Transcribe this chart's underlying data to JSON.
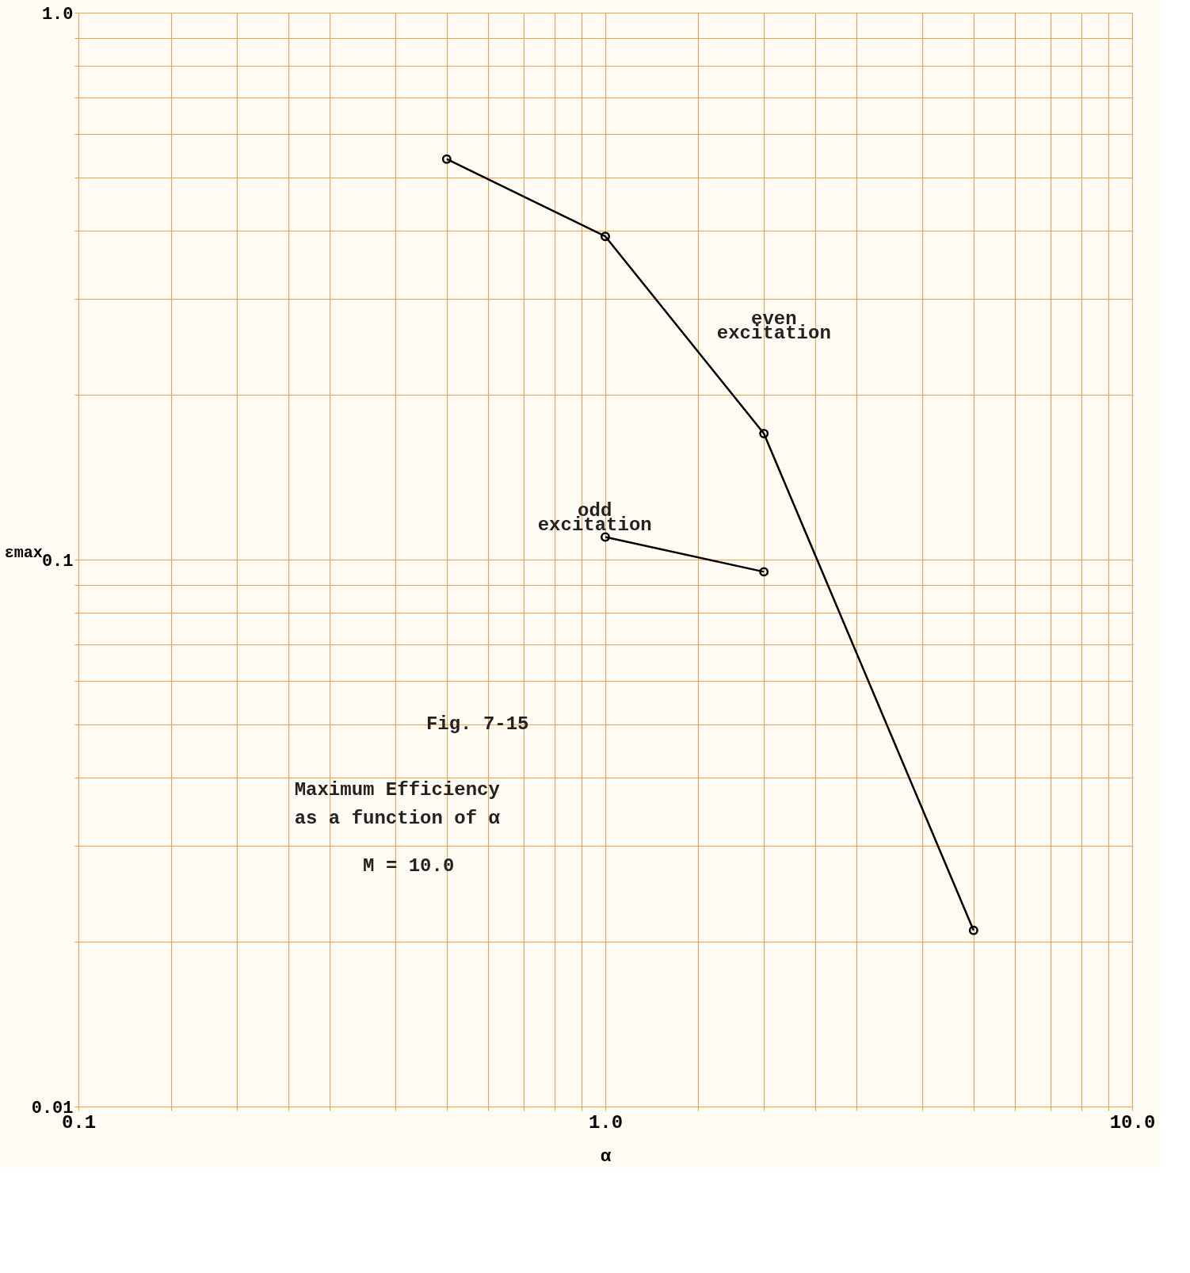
{
  "chart_data": {
    "type": "line",
    "xlabel": "α",
    "ylabel": "εmax",
    "log": "xy",
    "grid": true,
    "legend": false,
    "marker": "circle",
    "line_style": "solid",
    "xlim": [
      0.1,
      10
    ],
    "ylim": [
      0.01,
      1.0
    ],
    "xticks": [
      {
        "value": 0.1,
        "label": "0.1"
      },
      {
        "value": 0.15,
        "label": null
      },
      {
        "value": 0.2,
        "label": null
      },
      {
        "value": 0.25,
        "label": null
      },
      {
        "value": 0.3,
        "label": null
      },
      {
        "value": 0.4,
        "label": null
      },
      {
        "value": 0.5,
        "label": null
      },
      {
        "value": 0.6,
        "label": null
      },
      {
        "value": 0.7,
        "label": null
      },
      {
        "value": 0.8,
        "label": null
      },
      {
        "value": 0.9,
        "label": null
      },
      {
        "value": 1,
        "label": "1.0"
      },
      {
        "value": 1.5,
        "label": null
      },
      {
        "value": 2,
        "label": null
      },
      {
        "value": 2.5,
        "label": null
      },
      {
        "value": 3,
        "label": null
      },
      {
        "value": 4,
        "label": null
      },
      {
        "value": 5,
        "label": null
      },
      {
        "value": 6,
        "label": null
      },
      {
        "value": 7,
        "label": null
      },
      {
        "value": 8,
        "label": null
      },
      {
        "value": 9,
        "label": null
      },
      {
        "value": 10,
        "label": "10.0"
      }
    ],
    "yticks": [
      {
        "value": 0.01,
        "label": "0.01"
      },
      {
        "value": 0.02,
        "label": null
      },
      {
        "value": 0.03,
        "label": null
      },
      {
        "value": 0.04,
        "label": null
      },
      {
        "value": 0.05,
        "label": null
      },
      {
        "value": 0.06,
        "label": null
      },
      {
        "value": 0.07,
        "label": null
      },
      {
        "value": 0.08,
        "label": null
      },
      {
        "value": 0.09,
        "label": null
      },
      {
        "value": 0.1,
        "label": "0.1"
      },
      {
        "value": 0.2,
        "label": null
      },
      {
        "value": 0.3,
        "label": null
      },
      {
        "value": 0.4,
        "label": null
      },
      {
        "value": 0.5,
        "label": null
      },
      {
        "value": 0.6,
        "label": null
      },
      {
        "value": 0.7,
        "label": null
      },
      {
        "value": 0.8,
        "label": null
      },
      {
        "value": 0.9,
        "label": null
      },
      {
        "value": 1.0,
        "label": "1.0"
      }
    ],
    "series": [
      {
        "name": "even excitation",
        "color": "#000000",
        "x": [
          0.5,
          1.0,
          2.0,
          5.0
        ],
        "values": [
          0.54,
          0.39,
          0.17,
          0.021
        ]
      },
      {
        "name": "odd excitation",
        "color": "#000000",
        "x": [
          1.0,
          2.0
        ],
        "values": [
          0.11,
          0.095
        ]
      }
    ],
    "annotations": [
      "Fig. 7-15",
      "Maximum Efficiency\nas a function of α",
      "M = 10.0"
    ]
  }
}
